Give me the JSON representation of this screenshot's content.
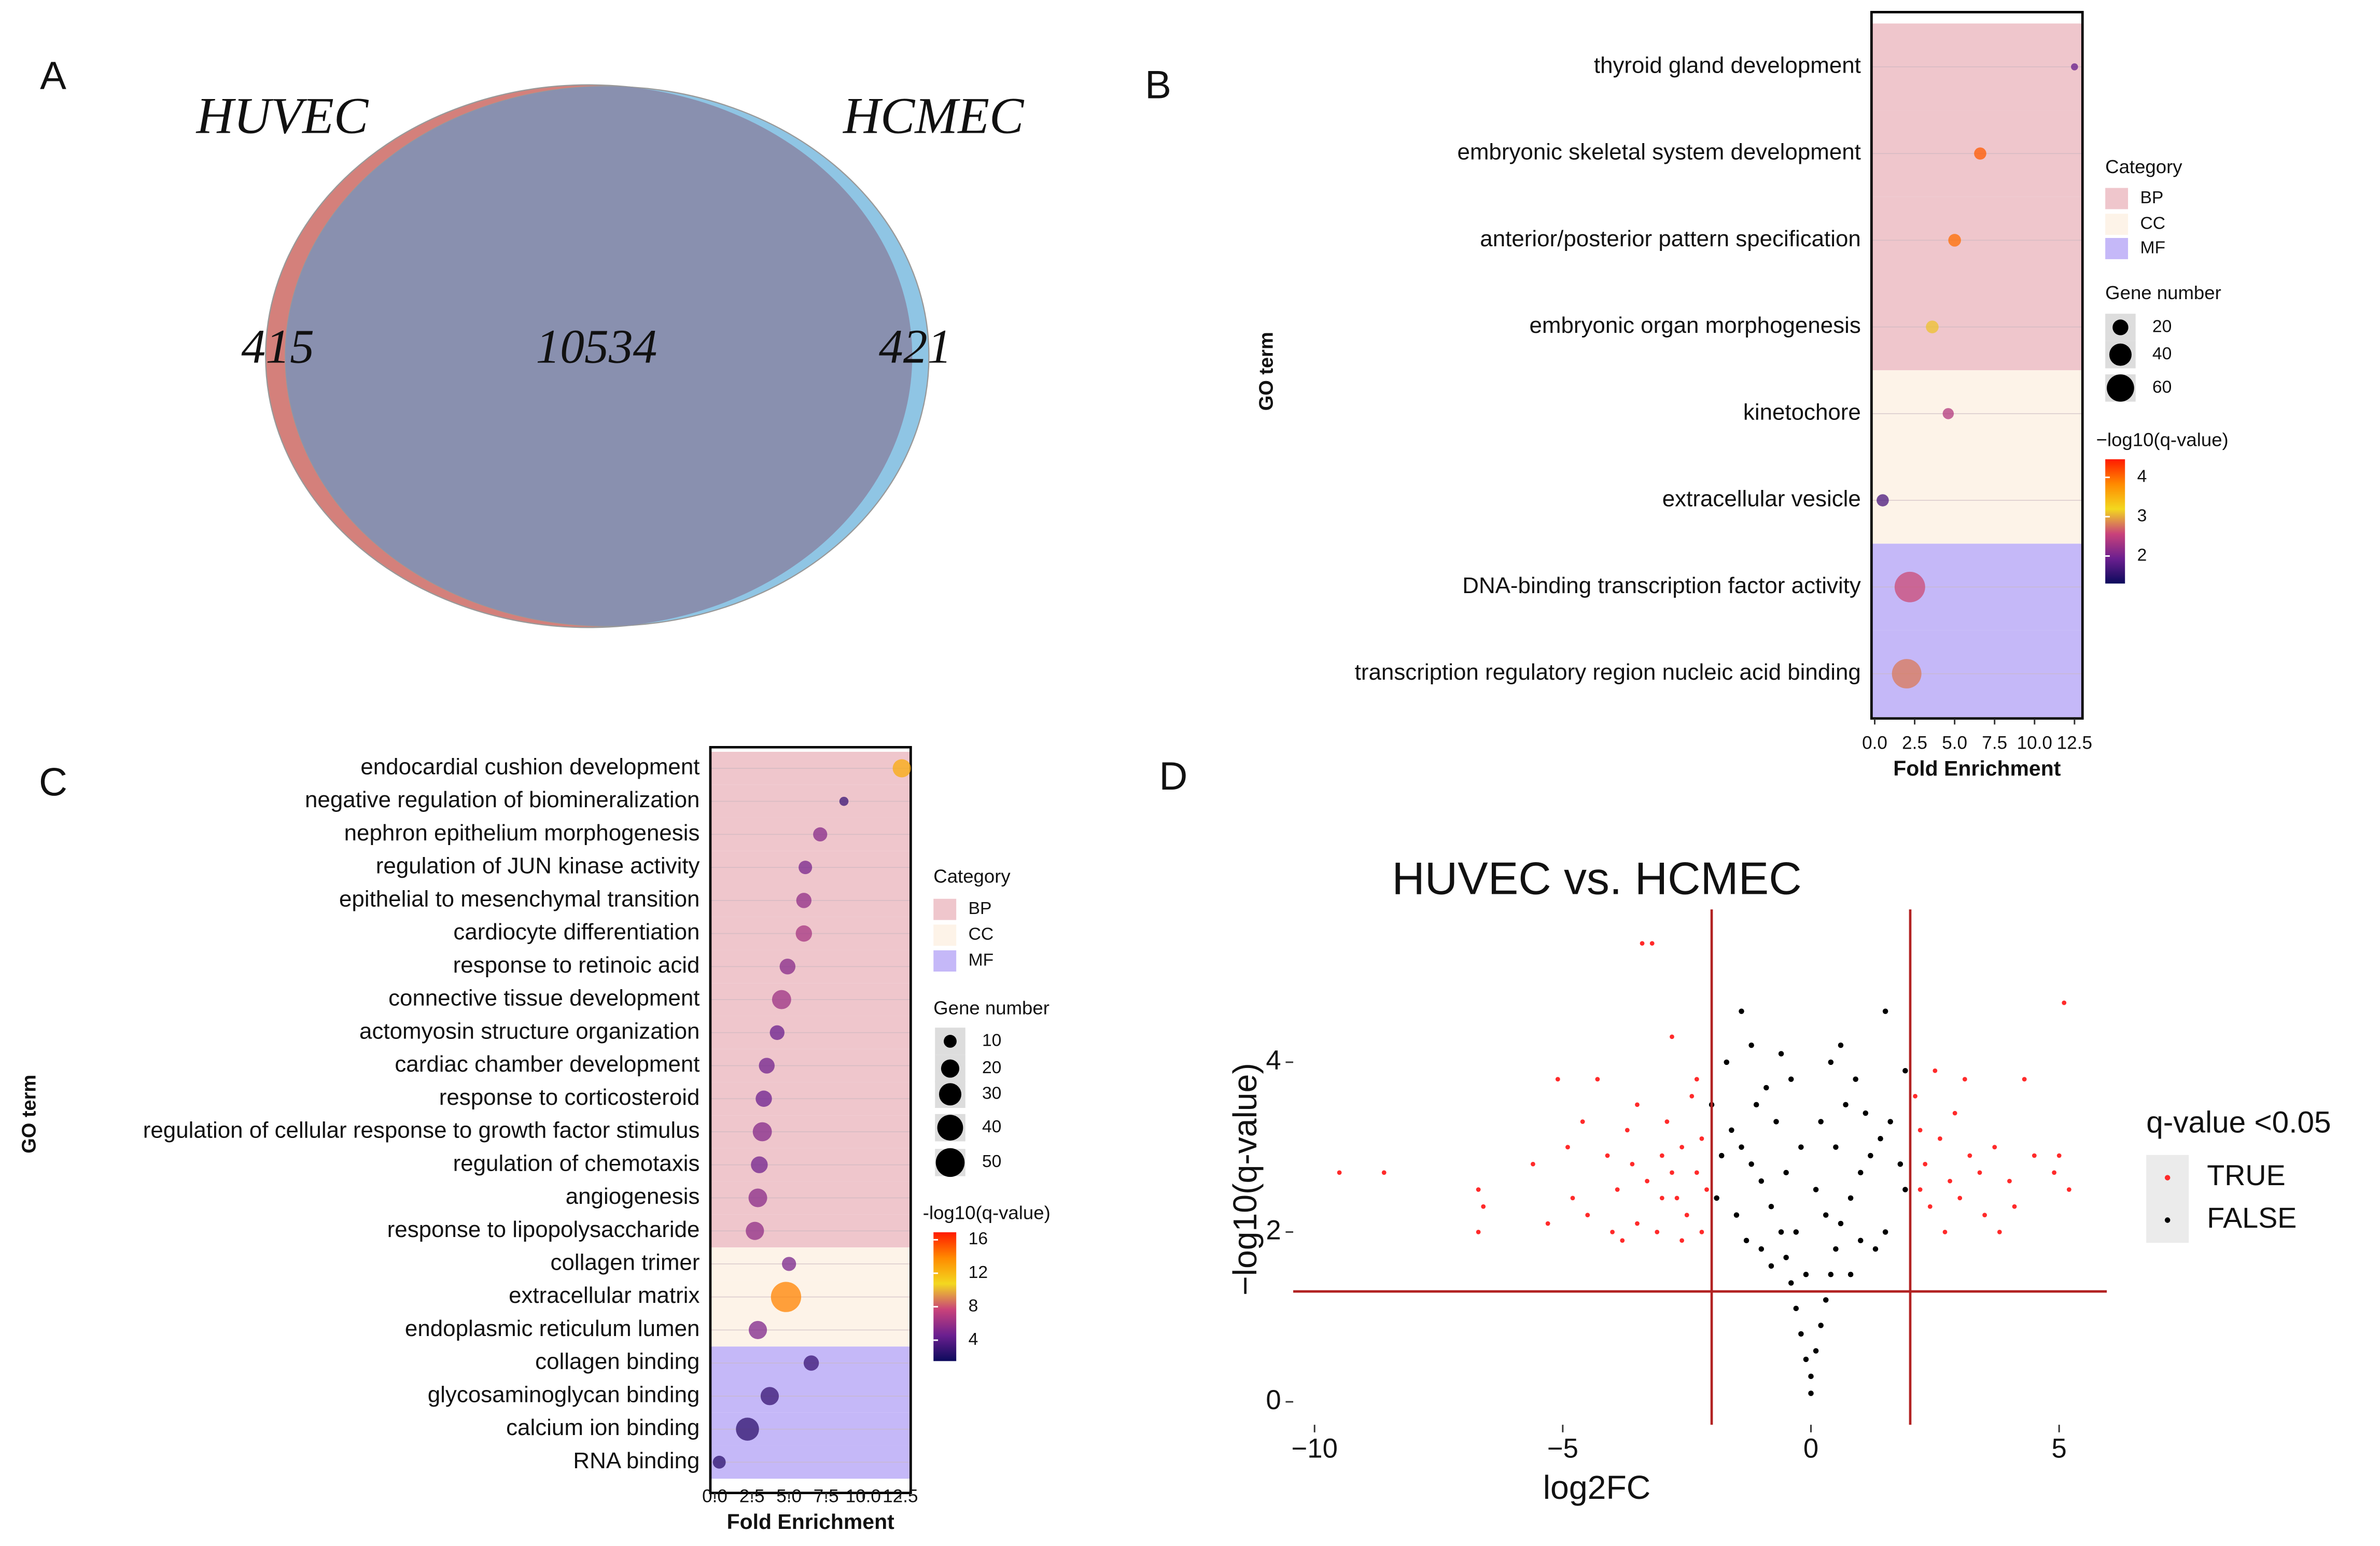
{
  "chart_data": [
    {
      "type": "venn",
      "panel": "A",
      "sets": [
        {
          "name": "HUVEC",
          "color": "#d4807b",
          "only": 415
        },
        {
          "name": "HCMEC",
          "color": "#8fc5e4",
          "only": 421
        }
      ],
      "intersection": 10534,
      "intersection_color": "#8990af"
    },
    {
      "type": "dot",
      "panel": "B",
      "x_label": "Fold Enrichment",
      "y_label": "GO term",
      "categories": [
        "thyroid gland development",
        "embryonic skeletal system development",
        "anterior/posterior pattern specification",
        "embryonic organ morphogenesis",
        "kinetochore",
        "extracellular vesicle",
        "DNA-binding transcription factor activity",
        "transcription regulatory region nucleic acid binding"
      ],
      "row_category": [
        "BP",
        "BP",
        "BP",
        "BP",
        "CC",
        "CC",
        "MF",
        "MF"
      ],
      "values": [
        12.5,
        6.6,
        5.0,
        3.6,
        4.6,
        0.5,
        2.2,
        2.0
      ],
      "sizes": [
        4,
        12,
        13,
        13,
        10,
        12,
        75,
        70
      ],
      "color_values": [
        1.9,
        4.1,
        4.0,
        3.1,
        2.4,
        1.7,
        2.6,
        2.8
      ],
      "xlim": [
        -0.2,
        13
      ],
      "xticks": [
        {
          "value": 0,
          "label": "0.0"
        },
        2.5,
        {
          "value": 5,
          "label": "5.0"
        },
        7.5,
        {
          "value": 10,
          "label": "10.0"
        },
        12.5
      ],
      "grid": true,
      "category_legend": {
        "title": "Category",
        "items": [
          {
            "name": "BP",
            "color": "#efc6cc"
          },
          {
            "name": "CC",
            "color": "#fdf3e8"
          },
          {
            "name": "MF",
            "color": "#c5b8f8"
          }
        ]
      },
      "size_legend": {
        "title": "Gene number",
        "values": [
          20,
          40,
          60
        ]
      },
      "color_legend": {
        "title": "−log10(q-value)",
        "lim": [
          1.3,
          4.46
        ],
        "ticks": [
          2,
          3,
          4
        ],
        "colors": [
          "#0c0a5c",
          "#6b1f8f",
          "#c9427a",
          "#f3d81f",
          "#ff8a00",
          "#ff1a00"
        ]
      }
    },
    {
      "type": "dot",
      "panel": "C",
      "x_label": "Fold Enrichment",
      "y_label": "GO term",
      "categories": [
        "endocardial cushion development",
        "negative regulation of biomineralization",
        "nephron epithelium morphogenesis",
        "regulation of JUN kinase activity",
        "epithelial to mesenchymal transition",
        "cardiocyte differentiation",
        "response to retinoic acid",
        "connective tissue development",
        "actomyosin structure organization",
        "cardiac chamber development",
        "response to corticosteroid",
        "regulation of cellular response to growth factor stimulus",
        "regulation of chemotaxis",
        "angiogenesis",
        "response to lipopolysaccharide",
        "collagen trimer",
        "extracellular matrix",
        "endoplasmic reticulum lumen",
        "collagen binding",
        "glycosaminoglycan binding",
        "calcium ion binding",
        "RNA binding"
      ],
      "row_category": [
        "BP",
        "BP",
        "BP",
        "BP",
        "BP",
        "BP",
        "BP",
        "BP",
        "BP",
        "BP",
        "BP",
        "BP",
        "BP",
        "BP",
        "BP",
        "CC",
        "CC",
        "CC",
        "MF",
        "MF",
        "MF",
        "MF"
      ],
      "values": [
        12.6,
        8.7,
        7.1,
        6.1,
        6.0,
        6.0,
        4.9,
        4.5,
        4.2,
        3.5,
        3.3,
        3.2,
        3.0,
        2.9,
        2.7,
        5.0,
        4.8,
        2.9,
        6.5,
        3.7,
        2.2,
        0.3
      ],
      "sizes": [
        20,
        5,
        12,
        11,
        14,
        16,
        15,
        22,
        13,
        15,
        16,
        22,
        17,
        21,
        20,
        12,
        55,
        20,
        14,
        20,
        32,
        10
      ],
      "color_values": [
        12.5,
        3.0,
        5.5,
        5.0,
        5.8,
        6.5,
        5.5,
        6.2,
        4.5,
        4.8,
        4.6,
        5.4,
        4.8,
        5.6,
        5.8,
        5.0,
        14.0,
        5.2,
        3.0,
        2.9,
        2.6,
        2.5
      ],
      "xlim": [
        -0.3,
        13.2
      ],
      "xticks": [
        {
          "value": 0,
          "label": "0.0"
        },
        2.5,
        {
          "value": 5,
          "label": "5.0"
        },
        7.5,
        {
          "value": 10,
          "label": "10.0"
        },
        12.5
      ],
      "grid": true,
      "category_legend": {
        "title": "Category",
        "items": [
          {
            "name": "BP",
            "color": "#efc6cc"
          },
          {
            "name": "CC",
            "color": "#fdf3e8"
          },
          {
            "name": "MF",
            "color": "#c5b8f8"
          }
        ]
      },
      "size_legend": {
        "title": "Gene number",
        "values": [
          10,
          20,
          30,
          40,
          50
        ]
      },
      "color_legend": {
        "title": "-log10(q-value)",
        "lim": [
          1.5,
          16.9
        ],
        "ticks": [
          4,
          8,
          12,
          16
        ],
        "colors": [
          "#0c0a5c",
          "#6b1f8f",
          "#c9427a",
          "#f3d81f",
          "#ff8a00",
          "#ff1a00"
        ]
      }
    },
    {
      "type": "scatter",
      "panel": "D",
      "title": "HUVEC vs. HCMEC",
      "x_label": "log2FC",
      "y_label": "−log10(q-value)",
      "xlim": [
        -10.43,
        5.96
      ],
      "ylim": [
        -0.27,
        5.8
      ],
      "xticks": [
        {
          "value": -10,
          "label": "−10"
        },
        {
          "value": -5,
          "label": "−5"
        },
        0,
        5
      ],
      "yticks": [
        0,
        2,
        4
      ],
      "vlines": [
        -2,
        2
      ],
      "hlines": [
        1.3
      ],
      "line_color": "#b22222",
      "grid": false,
      "legend": {
        "title": "q-value <0.05",
        "position": "right"
      },
      "series": [
        {
          "name": "TRUE",
          "color": "#ff2a2a",
          "x": [
            -9.5,
            -8.6,
            -6.7,
            -6.6,
            -6.7,
            -5.6,
            -5.1,
            -4.6,
            -4.3,
            -4.1,
            -3.9,
            -3.7,
            -3.5,
            -3.4,
            -3.2,
            -3.6,
            -3.3,
            -3.0,
            -2.9,
            -2.8,
            -2.7,
            -2.6,
            -2.5,
            -2.4,
            -2.3,
            -2.2,
            -2.1,
            -4.8,
            -4.5,
            -4.0,
            -3.8,
            -3.1,
            -2.6,
            -5.3,
            -4.9,
            -3.0,
            -2.2,
            -2.8,
            -3.5,
            -2.3,
            2.1,
            2.2,
            2.3,
            2.5,
            2.6,
            2.8,
            2.9,
            3.0,
            3.2,
            3.4,
            3.5,
            3.7,
            4.0,
            4.3,
            4.5,
            4.9,
            5.0,
            5.1,
            5.2,
            3.8,
            2.4,
            2.7,
            3.1,
            2.2,
            4.1
          ],
          "values": [
            2.7,
            2.7,
            2.5,
            2.3,
            2.0,
            2.8,
            3.8,
            3.3,
            3.8,
            2.9,
            2.5,
            3.2,
            2.1,
            5.4,
            5.4,
            2.8,
            2.6,
            2.9,
            3.3,
            4.3,
            2.4,
            3.0,
            2.2,
            3.6,
            2.7,
            3.1,
            2.5,
            2.4,
            2.2,
            2.0,
            1.9,
            2.0,
            1.9,
            2.1,
            3.0,
            2.4,
            2.0,
            2.7,
            3.5,
            3.8,
            3.6,
            3.2,
            2.8,
            3.9,
            3.1,
            2.6,
            3.4,
            2.4,
            2.9,
            2.7,
            2.2,
            3.0,
            2.6,
            3.8,
            2.9,
            2.7,
            2.9,
            4.7,
            2.5,
            2.0,
            2.3,
            2.0,
            3.8,
            2.5,
            2.3
          ]
        },
        {
          "name": "FALSE",
          "color": "#000000",
          "x": [
            0,
            0,
            -0.1,
            0.1,
            -0.2,
            0.2,
            -0.3,
            0.3,
            -0.4,
            0.4,
            -0.5,
            0.5,
            -0.6,
            0.6,
            -0.8,
            0.8,
            -1.0,
            1.0,
            -1.2,
            1.2,
            -1.4,
            1.4,
            -1.6,
            1.6,
            -1.8,
            1.8,
            -1.9,
            1.9,
            -0.3,
            0.3,
            -0.5,
            0.5,
            -0.7,
            0.7,
            -0.9,
            0.9,
            -1.1,
            1.1,
            -0.2,
            0.2,
            -0.4,
            0.4,
            -1.5,
            1.5,
            -1.3,
            1.3,
            -1.7,
            -1.4,
            1.5,
            -0.6,
            0.6,
            -1.0,
            1.0,
            -0.1,
            0.1,
            -0.8,
            0.8,
            -2.0,
            1.9,
            -1.2
          ],
          "values": [
            0.1,
            0.3,
            0.5,
            0.6,
            0.8,
            0.9,
            1.1,
            1.2,
            1.4,
            1.5,
            1.7,
            1.8,
            2.0,
            2.1,
            2.3,
            2.4,
            2.6,
            2.7,
            2.8,
            2.9,
            3.0,
            3.1,
            3.2,
            3.3,
            2.9,
            2.8,
            2.4,
            2.5,
            2.0,
            2.2,
            2.7,
            3.0,
            3.3,
            3.5,
            3.7,
            3.8,
            3.5,
            3.4,
            3.0,
            3.3,
            3.8,
            4.0,
            2.2,
            2.0,
            1.9,
            1.8,
            4.0,
            4.6,
            4.6,
            4.1,
            4.2,
            1.8,
            1.9,
            1.5,
            2.5,
            1.6,
            1.5,
            3.5,
            3.9,
            4.2
          ]
        }
      ]
    }
  ]
}
